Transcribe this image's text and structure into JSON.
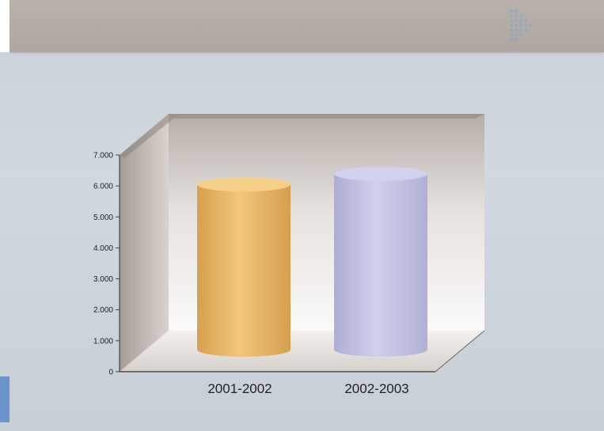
{
  "logo": {
    "lines": [
      "",
      "",
      "",
      ""
    ]
  },
  "colors": {
    "accent": "#6d93cf",
    "header_band": "#b2aaa3",
    "background": "#cdd4dc",
    "bar_1": "#e8b967",
    "bar_2": "#c2c2e2"
  },
  "chart_data": {
    "type": "bar",
    "style": "3d-cylinder",
    "categories": [
      "2001-2002",
      "2002-2003"
    ],
    "values": [
      6200,
      6600
    ],
    "ylim": [
      0,
      7000
    ],
    "yticks": [
      "0",
      "1.000",
      "2.000",
      "3.000",
      "4.000",
      "5.000",
      "6.000",
      "7.000"
    ],
    "ytick_values": [
      0,
      1000,
      2000,
      3000,
      4000,
      5000,
      6000,
      7000
    ],
    "title": "",
    "xlabel": "",
    "ylabel": "",
    "grid": false,
    "legend": "none"
  }
}
